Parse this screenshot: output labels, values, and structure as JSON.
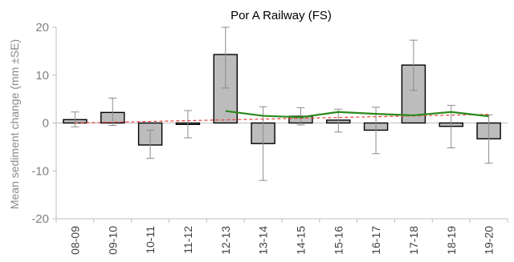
{
  "chart_data": {
    "type": "bar",
    "title": "Por A Railway (FS)",
    "ylabel": "Mean sediment change (mm ±SE)",
    "xlabel": "",
    "ylim": [
      -20,
      20
    ],
    "yticks": [
      20,
      10,
      0,
      -10,
      -20
    ],
    "categories": [
      "08-09",
      "09-10",
      "10-11",
      "11-12",
      "12-13",
      "13-14",
      "14-15",
      "15-16",
      "16-17",
      "17-18",
      "18-19",
      "19-20"
    ],
    "series": [
      {
        "type": "bar",
        "values": [
          0.7,
          2.2,
          -4.6,
          -0.3,
          14.3,
          -4.3,
          1.4,
          0.6,
          -1.5,
          12.1,
          -0.7,
          -3.3
        ],
        "error_low": [
          -0.8,
          -0.5,
          -7.4,
          -3.1,
          7.3,
          -12.0,
          -0.4,
          -1.9,
          -6.4,
          6.8,
          -5.2,
          -8.4
        ],
        "error_high": [
          2.3,
          5.2,
          -1.5,
          2.6,
          20.0,
          3.4,
          3.2,
          2.9,
          3.3,
          17.3,
          3.7,
          1.7
        ]
      },
      {
        "type": "line",
        "x": [
          "12-13",
          "13-14",
          "14-15",
          "15-16",
          "16-17",
          "17-18",
          "18-19",
          "19-20"
        ],
        "values": [
          2.5,
          1.5,
          1.2,
          2.3,
          1.9,
          1.6,
          2.3,
          1.4
        ]
      },
      {
        "type": "trend",
        "x": [
          "08-09",
          "19-20"
        ],
        "values": [
          0.0,
          1.8
        ]
      }
    ],
    "grid": false,
    "colors": {
      "bar_fill": "#bcbcbc",
      "bar_stroke": "#000000",
      "error_bar": "#8c8c8c",
      "green_line": "#2a8a1c",
      "trend_line": "#e8413a",
      "axis": "#bfbfbf"
    }
  }
}
